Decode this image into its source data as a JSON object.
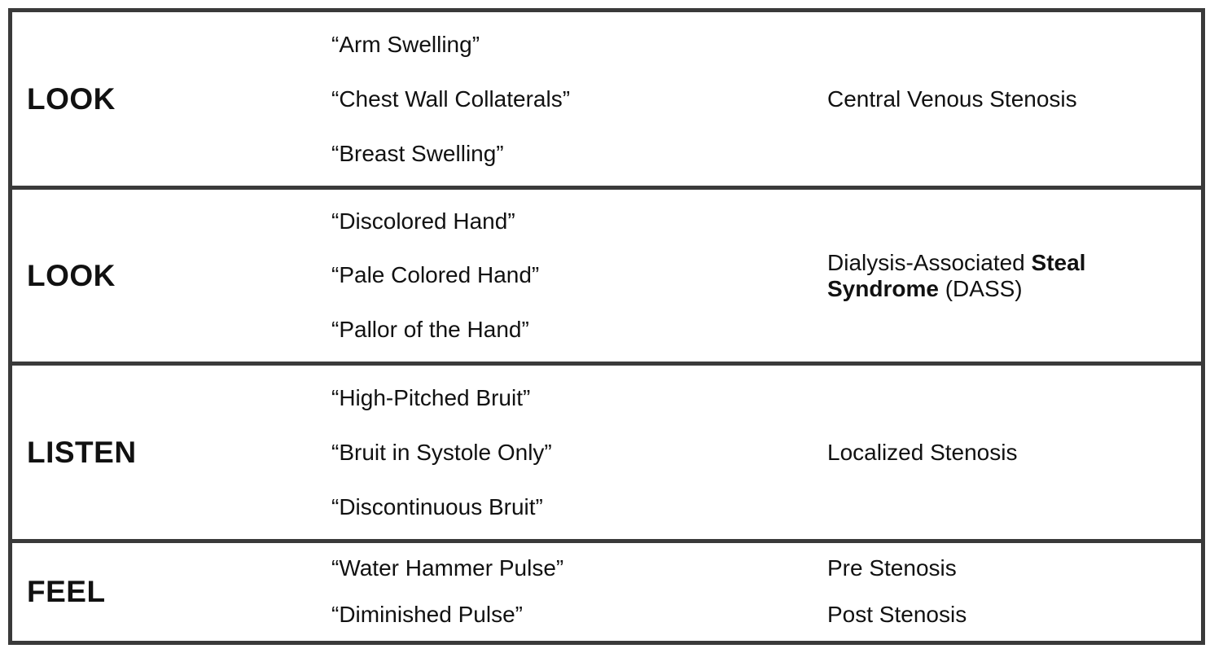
{
  "rows": [
    {
      "action": "LOOK",
      "findings": [
        "“Arm Swelling”",
        "“Chest Wall Collaterals”",
        "“Breast Swelling”"
      ],
      "diagnosis": "Central Venous Stenosis"
    },
    {
      "action": "LOOK",
      "findings": [
        "“Discolored Hand”",
        "“Pale Colored Hand”",
        "“Pallor of the Hand”"
      ],
      "diagnosis_parts": {
        "prefix": "Dialysis-Associated ",
        "bold_1": "Steal",
        "bold_2": "Syndrome",
        "suffix": " (DASS)"
      }
    },
    {
      "action": "LISTEN",
      "findings": [
        "“High-Pitched Bruit”",
        "“Bruit in Systole Only”",
        "“Discontinuous Bruit”"
      ],
      "diagnosis": "Localized Stenosis"
    },
    {
      "action": "FEEL",
      "findings": [
        "“Water Hammer Pulse”",
        "“Diminished Pulse”"
      ],
      "diagnoses": [
        "Pre Stenosis",
        "Post Stenosis"
      ]
    }
  ]
}
